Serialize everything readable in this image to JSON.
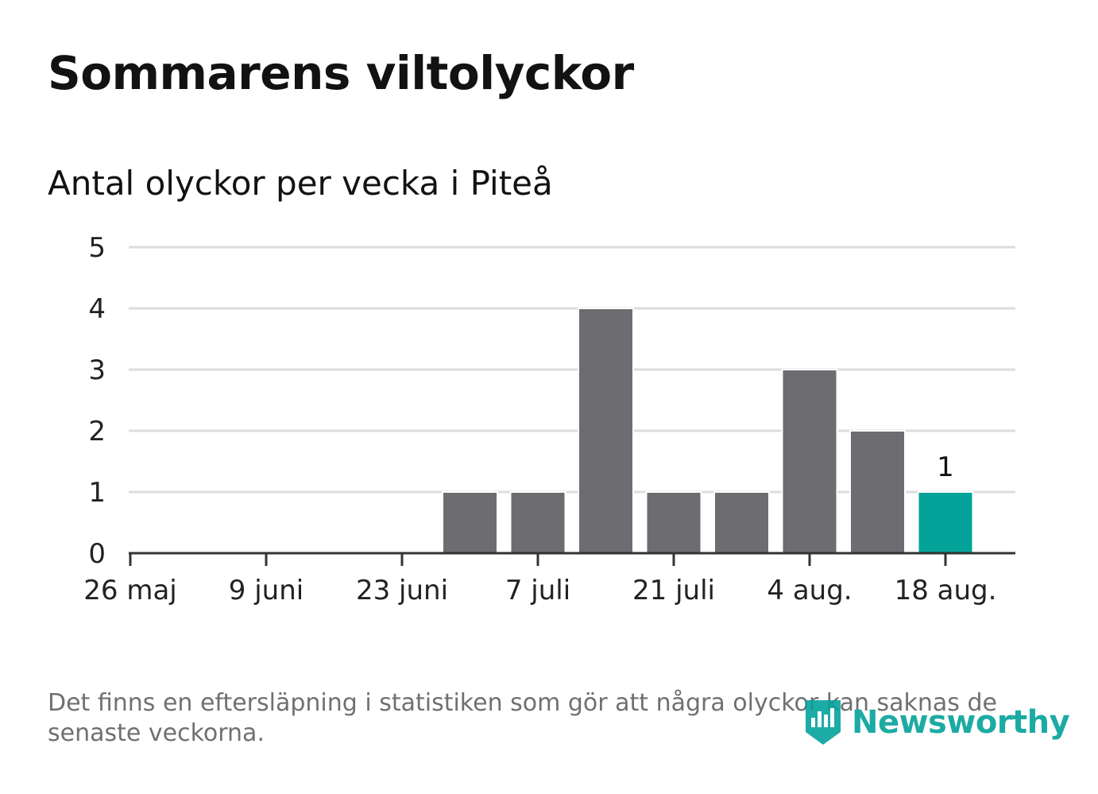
{
  "header": {
    "title": "Sommarens viltolyckor",
    "subtitle": "Antal olyckor per vecka i Piteå"
  },
  "footnote": "Det finns en eftersläpning i statistiken som gör att några olyckor kan saknas de senaste veckorna.",
  "brand": {
    "name": "Newsworthy",
    "icon": "newsworthy-logo-icon"
  },
  "colors": {
    "bar": "#6d6c71",
    "highlight": "#03a39a",
    "grid": "#dddddd",
    "axis": "#333333",
    "text": "#222222",
    "brand": "#04a39b"
  },
  "chart_data": {
    "type": "bar",
    "x": [
      "2024-05-26",
      "2024-06-02",
      "2024-06-09",
      "2024-06-16",
      "2024-06-23",
      "2024-06-30",
      "2024-07-07",
      "2024-07-14",
      "2024-07-21",
      "2024-07-28",
      "2024-08-04",
      "2024-08-11",
      "2024-08-18"
    ],
    "values": [
      0,
      0,
      0,
      0,
      0,
      1,
      1,
      4,
      1,
      1,
      3,
      2,
      1
    ],
    "highlight_index": 12,
    "highlight_label": "1",
    "xtick_labels": [
      "26 maj",
      "9 juni",
      "23 juni",
      "7 juli",
      "21 juli",
      "4 aug.",
      "18 aug."
    ],
    "xtick_dates": [
      "2024-05-26",
      "2024-06-09",
      "2024-06-23",
      "2024-07-07",
      "2024-07-21",
      "2024-08-04",
      "2024-08-18"
    ],
    "yticks": [
      0,
      1,
      2,
      3,
      4,
      5
    ],
    "ylim": [
      0,
      5
    ],
    "grid": true,
    "legend": "none"
  }
}
